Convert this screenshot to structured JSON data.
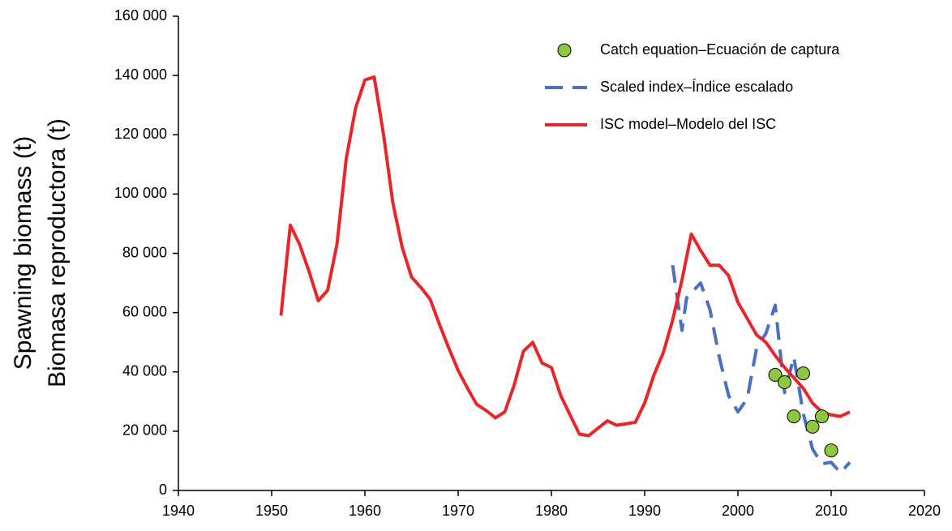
{
  "chart_data": {
    "type": "line",
    "y_label": [
      "Spawning biomass (t)",
      "Biomasa reproductora (t)"
    ],
    "xlim": [
      1940,
      2020
    ],
    "xticks": [
      1940,
      1950,
      1960,
      1970,
      1980,
      1990,
      2000,
      2010,
      2020
    ],
    "ylim": [
      0,
      160000
    ],
    "yticks": [
      0,
      {
        "value": 20000,
        "label": "20 000"
      },
      {
        "value": 40000,
        "label": "40 000"
      },
      {
        "value": 60000,
        "label": "60 000"
      },
      {
        "value": 80000,
        "label": "80 000"
      },
      {
        "value": 100000,
        "label": "100 000"
      },
      {
        "value": 120000,
        "label": "120 000"
      },
      {
        "value": 140000,
        "label": "140 000"
      },
      {
        "value": 160000,
        "label": "160 000"
      }
    ],
    "grid": false,
    "legend": "top-right",
    "series": [
      {
        "name": "Catch equation–Ecuación de captura",
        "type": "scatter",
        "color": "#8dc63f",
        "x": [
          2004,
          2005,
          2006,
          2007,
          2008,
          2009,
          2010
        ],
        "values": [
          39000,
          36500,
          25000,
          39500,
          21500,
          25000,
          13500
        ]
      },
      {
        "name": "Scaled index–Índice escalado",
        "type": "line",
        "dashed": true,
        "color": "#4a6fc4",
        "x": [
          1993,
          1994,
          1994.5,
          1996,
          1997,
          1998,
          1999,
          2000,
          2001,
          2002,
          2003,
          2004,
          2005,
          2006,
          2007,
          2008,
          2009,
          2010,
          2011,
          2012
        ],
        "values": [
          76000,
          54000,
          65000,
          70000,
          61000,
          45000,
          32000,
          26500,
          31000,
          48000,
          53000,
          62500,
          33000,
          45000,
          26000,
          14000,
          9000,
          9500,
          6000,
          9500
        ]
      },
      {
        "name": "ISC model–Modelo del ISC",
        "type": "line",
        "dashed": false,
        "color": "#e8262a",
        "x": [
          1951,
          1952,
          1953,
          1954,
          1955,
          1956,
          1957,
          1958,
          1959,
          1960,
          1961,
          1962,
          1963,
          1964,
          1965,
          1966,
          1967,
          1968,
          1969,
          1970,
          1971,
          1972,
          1973,
          1974,
          1975,
          1976,
          1977,
          1978,
          1979,
          1980,
          1981,
          1982,
          1983,
          1984,
          1985,
          1986,
          1987,
          1988,
          1989,
          1990,
          1991,
          1992,
          1993,
          1994,
          1995,
          1996,
          1997,
          1998,
          1999,
          2000,
          2001,
          2002,
          2003,
          2004,
          2005,
          2006,
          2007,
          2008,
          2009,
          2010,
          2011,
          2012
        ],
        "values": [
          59000,
          89500,
          83000,
          74000,
          64000,
          67500,
          83000,
          112000,
          129000,
          138500,
          139500,
          120000,
          97000,
          82000,
          72000,
          68500,
          64500,
          56000,
          48000,
          40500,
          34500,
          29000,
          27000,
          24500,
          26500,
          35500,
          47000,
          50000,
          43000,
          41500,
          32000,
          25500,
          19000,
          18500,
          21000,
          23500,
          22000,
          22500,
          23000,
          29500,
          39000,
          46500,
          57500,
          71000,
          86500,
          81000,
          76000,
          76000,
          72500,
          63500,
          58000,
          52500,
          50000,
          45500,
          41500,
          38000,
          34500,
          29500,
          26500,
          25500,
          25000,
          26500
        ]
      }
    ]
  }
}
